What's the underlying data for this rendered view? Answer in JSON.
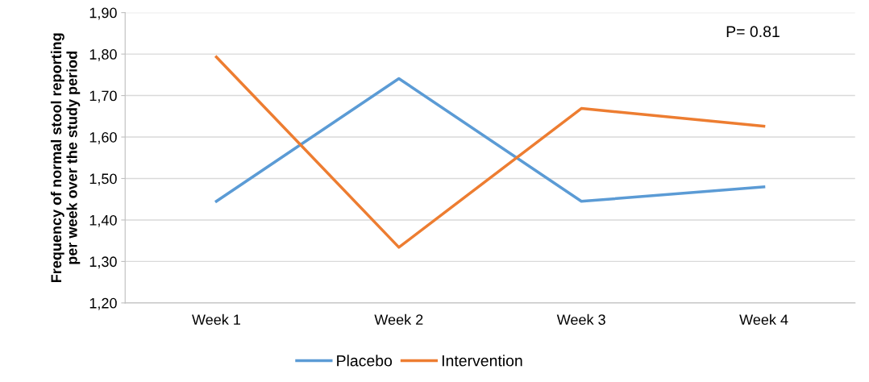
{
  "chart_data": {
    "type": "line",
    "ylabel": "Frequency of normal stool reporting\nper week over the study period",
    "categories": [
      "Week 1",
      "Week 2",
      "Week 3",
      "Week 4"
    ],
    "series": [
      {
        "name": "Placebo",
        "color": "#5b9bd5",
        "values": [
          1.445,
          1.741,
          1.445,
          1.48
        ]
      },
      {
        "name": "Intervention",
        "color": "#ed7d31",
        "values": [
          1.793,
          1.334,
          1.669,
          1.626
        ]
      }
    ],
    "ylim": [
      1.2,
      1.9
    ],
    "yticks": [
      {
        "value": 1.2,
        "label": "1,20"
      },
      {
        "value": 1.3,
        "label": "1,30"
      },
      {
        "value": 1.4,
        "label": "1,40"
      },
      {
        "value": 1.5,
        "label": "1,50"
      },
      {
        "value": 1.6,
        "label": "1,60"
      },
      {
        "value": 1.7,
        "label": "1,70"
      },
      {
        "value": 1.8,
        "label": "1,80"
      },
      {
        "value": 1.9,
        "label": "1,90"
      }
    ],
    "grid": "y",
    "legend": "bottom",
    "marker": "none",
    "line_style": "solid",
    "annotations": [
      "P= 0.81"
    ]
  }
}
